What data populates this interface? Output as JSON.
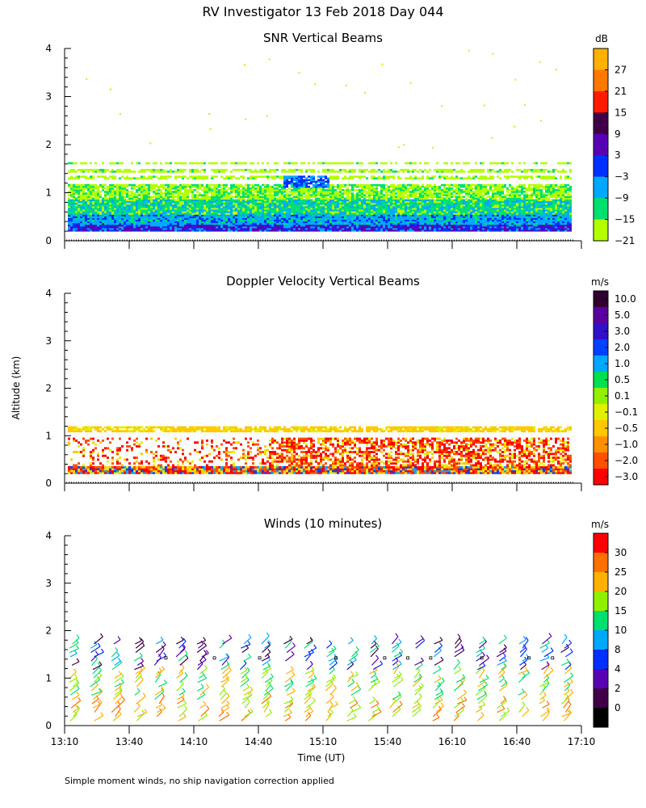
{
  "figure": {
    "title": "RV Investigator  13 Feb 2018 Day 044",
    "ylabel": "Altitude (km)",
    "xlabel": "Time (UT)",
    "footnote": "Simple moment winds, no ship navigation correction applied"
  },
  "chart_data": [
    {
      "type": "heatmap",
      "title": "SNR Vertical Beams",
      "ylabel": "Altitude (km)",
      "ylim": [
        0,
        4
      ],
      "y_ticks": [
        "0",
        "1",
        "2",
        "3",
        "4"
      ],
      "x_range": [
        "13:10",
        "17:10"
      ],
      "colorbar": {
        "unit": "dB",
        "labels": [
          "27",
          "21",
          "15",
          "9",
          "3",
          "−3",
          "−9",
          "−15",
          "−21"
        ],
        "colors": [
          "#ffb000",
          "#ff7800",
          "#ff1a00",
          "#400048",
          "#5a00b4",
          "#0030ff",
          "#00a8ff",
          "#00e070",
          "#b4ff00"
        ]
      },
      "layers": [
        {
          "band": "surface",
          "alt_km": [
            0.2,
            0.4
          ],
          "value_db": -3
        },
        {
          "band": "lower",
          "alt_km": [
            0.4,
            0.8
          ],
          "value_db": -9
        },
        {
          "band": "middle",
          "alt_km": [
            0.8,
            1.1
          ],
          "value_db": -15
        },
        {
          "band": "upper",
          "alt_km": [
            1.1,
            1.6
          ],
          "value_db": -21
        }
      ]
    },
    {
      "type": "heatmap",
      "title": "Doppler Velocity Vertical Beams",
      "ylabel": "Altitude (km)",
      "ylim": [
        0,
        4
      ],
      "y_ticks": [
        "0",
        "1",
        "2",
        "3",
        "4"
      ],
      "x_range": [
        "13:10",
        "17:10"
      ],
      "colorbar": {
        "unit": "m/s",
        "labels": [
          "10.0",
          "5.0",
          "3.0",
          "2.0",
          "1.0",
          "0.5",
          "0.1",
          "−0.1",
          "−0.5",
          "−1.0",
          "−2.0",
          "−3.0"
        ],
        "colors": [
          "#300030",
          "#5a00a0",
          "#3010c8",
          "#0040ff",
          "#00a8ff",
          "#00e050",
          "#90f000",
          "#e0f000",
          "#ffc800",
          "#ff9000",
          "#ff5000",
          "#ff0000"
        ]
      },
      "layers": [
        {
          "band": "surface",
          "alt_km": [
            0.2,
            0.4
          ],
          "value_ms": -1.0
        },
        {
          "band": "lower",
          "alt_km": [
            0.4,
            0.9
          ],
          "value_ms": -2.0
        },
        {
          "band": "cloud top",
          "alt_km": [
            1.05,
            1.2
          ],
          "value_ms": -0.5
        }
      ]
    },
    {
      "type": "scatter",
      "title": "Winds (10 minutes)",
      "ylabel": "Altitude (km)",
      "xlabel": "Time (UT)",
      "ylim": [
        0,
        4
      ],
      "y_ticks": [
        "0",
        "1",
        "2",
        "3",
        "4"
      ],
      "x_ticks": [
        "13:10",
        "13:40",
        "14:10",
        "14:40",
        "15:10",
        "15:40",
        "16:10",
        "16:40",
        "17:10"
      ],
      "colorbar": {
        "unit": "m/s",
        "labels": [
          "30",
          "25",
          "20",
          "15",
          "10",
          "8",
          "4",
          "2",
          "0"
        ],
        "colors": [
          "#ff0000",
          "#ff7000",
          "#ffb000",
          "#90f000",
          "#00e070",
          "#00a8ff",
          "#0030ff",
          "#5a00b4",
          "#400048",
          "#000000"
        ]
      },
      "wind_barbs_alt_range_km": [
        0.1,
        1.7
      ]
    }
  ]
}
